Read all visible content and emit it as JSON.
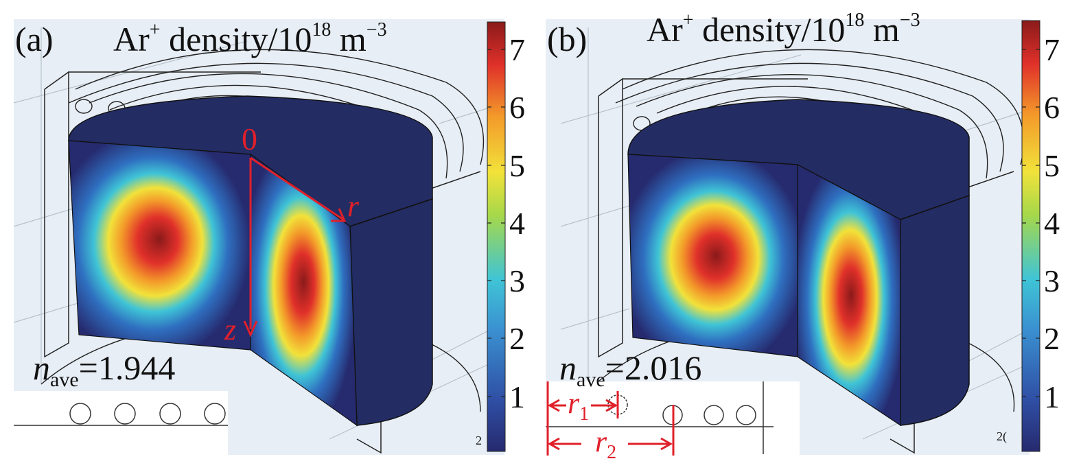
{
  "panels": [
    {
      "label": "(a)",
      "title_main": "Ar",
      "title_sup": "+",
      "title_rest": " density/10",
      "title_exp": "18",
      "title_unit": " m",
      "title_unit_exp": "−3",
      "axis_origin": "0",
      "axis_r": "r",
      "axis_z": "z",
      "n_symbol": "n",
      "n_sub": "ave",
      "n_value": "=1.944",
      "corner_mark": "2"
    },
    {
      "label": "(b)",
      "title_main": "Ar",
      "title_sup": "+",
      "title_rest": " density/10",
      "title_exp": "18",
      "title_unit": " m",
      "title_unit_exp": "−3",
      "n_symbol": "n",
      "n_sub": "ave",
      "n_value": "=2.016",
      "r1_symbol": "r",
      "r1_sub": "1",
      "r2_symbol": "r",
      "r2_sub": "2",
      "corner_mark": "2("
    }
  ],
  "colorbar": {
    "ticks": [
      "1",
      "2",
      "3",
      "4",
      "5",
      "6",
      "7"
    ],
    "colors": [
      "#262a6e",
      "#2f4fa5",
      "#3a8fd0",
      "#3fc4d6",
      "#a6d84a",
      "#f2e23a",
      "#f39a2a",
      "#e0302a",
      "#8a1a1a"
    ]
  },
  "colors": {
    "annotation": "#e0202a",
    "background": "#e8eef5",
    "cylinder_side": "#232c63"
  }
}
